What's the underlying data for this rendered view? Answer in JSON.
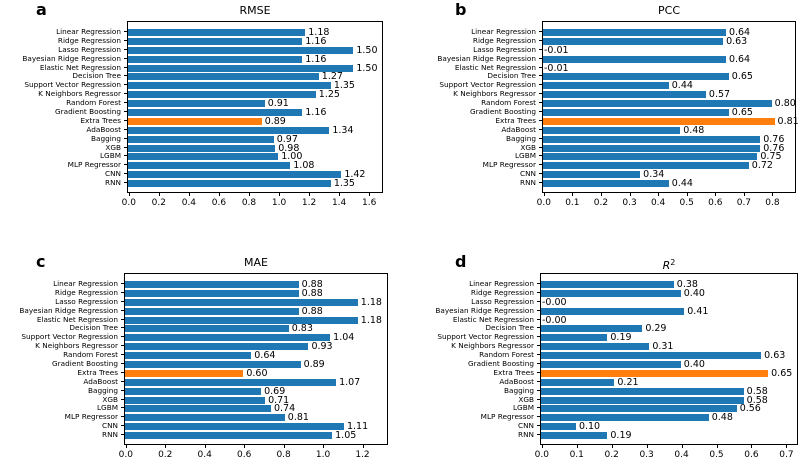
{
  "ui": {
    "background": "#ffffff",
    "bar_color": "#1f77b4",
    "highlight_bar_color": "#ff7f0e",
    "highlighted_category": "Extra Trees",
    "panel_letters": [
      "a",
      "b",
      "c",
      "d"
    ]
  },
  "chart_data": [
    {
      "panel": "a",
      "type": "bar",
      "orientation": "horizontal",
      "title": "RMSE",
      "xlabel": "",
      "ylabel": "",
      "grid": false,
      "legend": "none",
      "highlight_index": 10,
      "categories": [
        "Linear Regression",
        "Ridge Regression",
        "Lasso Regression",
        "Bayesian Ridge Regression",
        "Elastic Net Regression",
        "Decision Tree",
        "Support Vector Regression",
        "K Neighbors Regressor",
        "Random Forest",
        "Gradient Boosting",
        "Extra Trees",
        "AdaBoost",
        "Bagging",
        "XGB",
        "LGBM",
        "MLP Regressor",
        "CNN",
        "RNN"
      ],
      "values": [
        1.18,
        1.16,
        1.5,
        1.16,
        1.5,
        1.27,
        1.35,
        1.25,
        0.91,
        1.16,
        0.89,
        1.34,
        0.97,
        0.98,
        1.0,
        1.08,
        1.42,
        1.35
      ],
      "value_labels": [
        "1.18",
        "1.16",
        "1.50",
        "1.16",
        "1.50",
        "1.27",
        "1.35",
        "1.25",
        "0.91",
        "1.16",
        "0.89",
        "1.34",
        "0.97",
        "0.98",
        "1.00",
        "1.08",
        "1.42",
        "1.35"
      ],
      "xlim": [
        0,
        1.68
      ],
      "xticks": [
        0.0,
        0.2,
        0.4,
        0.6,
        0.8,
        1.0,
        1.2,
        1.4,
        1.6
      ],
      "xtick_labels": [
        "0.0",
        "0.2",
        "0.4",
        "0.6",
        "0.8",
        "1.0",
        "1.2",
        "1.4",
        "1.6"
      ]
    },
    {
      "panel": "b",
      "type": "bar",
      "orientation": "horizontal",
      "title": "PCC",
      "xlabel": "",
      "ylabel": "",
      "grid": false,
      "legend": "none",
      "highlight_index": 10,
      "categories": [
        "Linear Regression",
        "Ridge Regression",
        "Lasso Regression",
        "Bayesian Ridge Regression",
        "Elastic Net Regression",
        "Decision Tree",
        "Support Vector Regression",
        "K Neighbors Regressor",
        "Random Forest",
        "Gradient Boosting",
        "Extra Trees",
        "AdaBoost",
        "Bagging",
        "XGB",
        "LGBM",
        "MLP Regressor",
        "CNN",
        "RNN"
      ],
      "values": [
        0.64,
        0.63,
        -0.01,
        0.64,
        -0.01,
        0.65,
        0.44,
        0.57,
        0.8,
        0.65,
        0.81,
        0.48,
        0.76,
        0.76,
        0.75,
        0.72,
        0.34,
        0.44
      ],
      "value_labels": [
        "0.64",
        "0.63",
        "-0.01",
        "0.64",
        "-0.01",
        "0.65",
        "0.44",
        "0.57",
        "0.80",
        "0.65",
        "0.81",
        "0.48",
        "0.76",
        "0.76",
        "0.75",
        "0.72",
        "0.34",
        "0.44"
      ],
      "xlim": [
        0,
        0.876
      ],
      "xticks": [
        0.0,
        0.1,
        0.2,
        0.3,
        0.4,
        0.5,
        0.6,
        0.7,
        0.8
      ],
      "xtick_labels": [
        "0.0",
        "0.1",
        "0.2",
        "0.3",
        "0.4",
        "0.5",
        "0.6",
        "0.7",
        "0.8"
      ]
    },
    {
      "panel": "c",
      "type": "bar",
      "orientation": "horizontal",
      "title": "MAE",
      "xlabel": "",
      "ylabel": "",
      "grid": false,
      "legend": "none",
      "highlight_index": 10,
      "categories": [
        "Linear Regression",
        "Ridge Regression",
        "Lasso Regression",
        "Bayesian Ridge Regression",
        "Elastic Net Regression",
        "Decision Tree",
        "Support Vector Regression",
        "K Neighbors Regressor",
        "Random Forest",
        "Gradient Boosting",
        "Extra Trees",
        "AdaBoost",
        "Bagging",
        "XGB",
        "LGBM",
        "MLP Regressor",
        "CNN",
        "RNN"
      ],
      "values": [
        0.88,
        0.88,
        1.18,
        0.88,
        1.18,
        0.83,
        1.04,
        0.93,
        0.64,
        0.89,
        0.6,
        1.07,
        0.69,
        0.71,
        0.74,
        0.81,
        1.11,
        1.05
      ],
      "value_labels": [
        "0.88",
        "0.88",
        "1.18",
        "0.88",
        "1.18",
        "0.83",
        "1.04",
        "0.93",
        "0.64",
        "0.89",
        "0.60",
        "1.07",
        "0.69",
        "0.71",
        "0.74",
        "0.81",
        "1.11",
        "1.05"
      ],
      "xlim": [
        0,
        1.32
      ],
      "xticks": [
        0.0,
        0.2,
        0.4,
        0.6,
        0.8,
        1.0,
        1.2
      ],
      "xtick_labels": [
        "0.0",
        "0.2",
        "0.4",
        "0.6",
        "0.8",
        "1.0",
        "1.2"
      ]
    },
    {
      "panel": "d",
      "type": "bar",
      "orientation": "horizontal",
      "title": "R",
      "title_superscript": "2",
      "xlabel": "",
      "ylabel": "",
      "grid": false,
      "legend": "none",
      "highlight_index": 10,
      "categories": [
        "Linear Regression",
        "Ridge Regression",
        "Lasso Regression",
        "Bayesian Ridge Regression",
        "Elastic Net Regression",
        "Decision Tree",
        "Support Vector Regression",
        "K Neighbors Regressor",
        "Random Forest",
        "Gradient Boosting",
        "Extra Trees",
        "AdaBoost",
        "Bagging",
        "XGB",
        "LGBM",
        "MLP Regressor",
        "CNN",
        "RNN"
      ],
      "values": [
        0.38,
        0.4,
        -0.0,
        0.41,
        -0.0,
        0.29,
        0.19,
        0.31,
        0.63,
        0.4,
        0.65,
        0.21,
        0.58,
        0.58,
        0.56,
        0.48,
        0.1,
        0.19
      ],
      "value_labels": [
        "0.38",
        "0.40",
        "-0.00",
        "0.41",
        "-0.00",
        "0.29",
        "0.19",
        "0.31",
        "0.63",
        "0.40",
        "0.65",
        "0.21",
        "0.58",
        "0.58",
        "0.56",
        "0.48",
        "0.10",
        "0.19"
      ],
      "xlim": [
        0,
        0.728
      ],
      "xticks": [
        0.0,
        0.1,
        0.2,
        0.3,
        0.4,
        0.5,
        0.6,
        0.7
      ],
      "xtick_labels": [
        "0.0",
        "0.1",
        "0.2",
        "0.3",
        "0.4",
        "0.5",
        "0.6",
        "0.7"
      ]
    }
  ]
}
